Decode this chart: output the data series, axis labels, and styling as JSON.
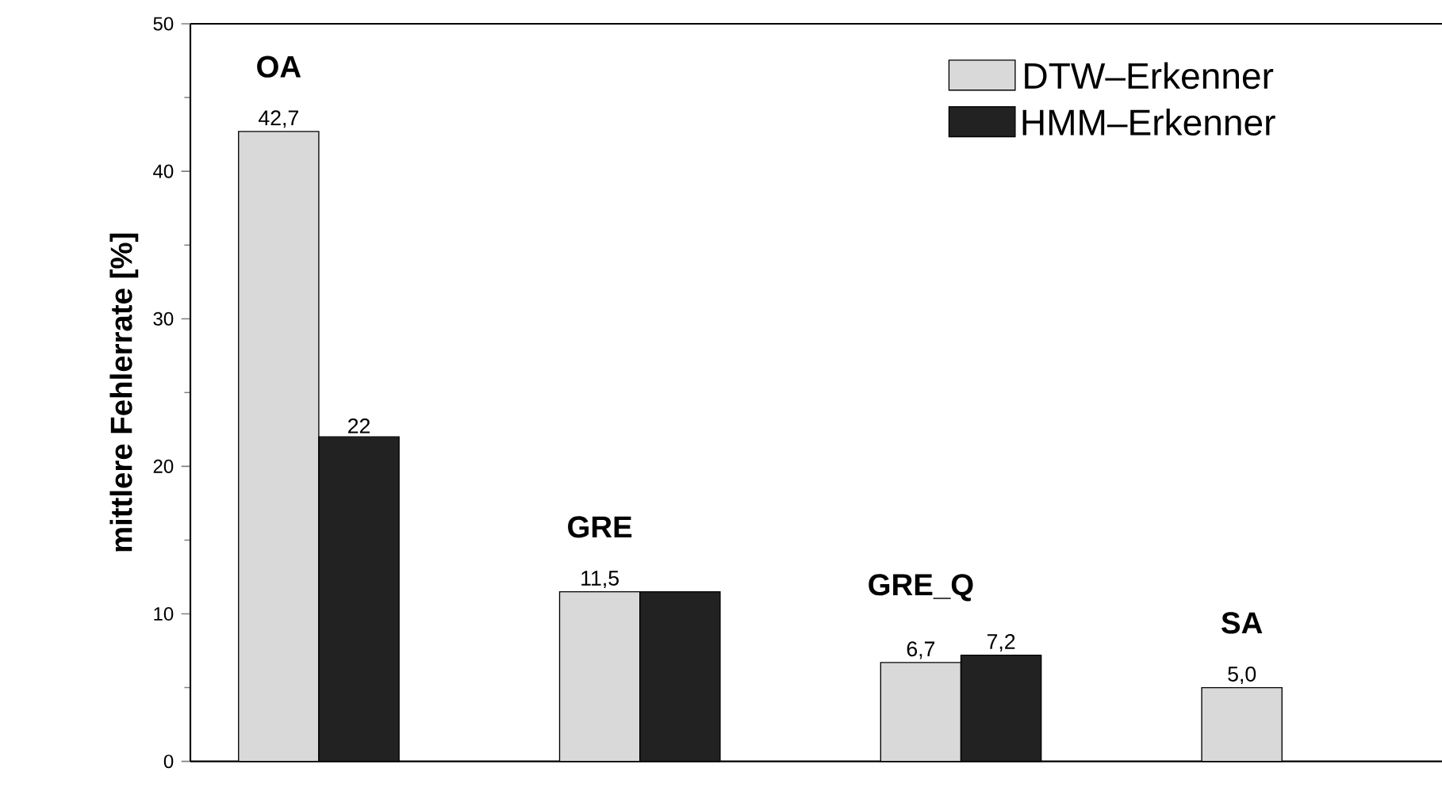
{
  "chart_data": {
    "type": "bar",
    "ylabel": "mittlere Fehlerrate [%]",
    "categories": [
      "OA",
      "GRE",
      "GRE_Q",
      "SA"
    ],
    "series": [
      {
        "name": "DTW–Erkenner",
        "color": "#d9d9d9",
        "values": [
          42.7,
          11.5,
          6.7,
          5.0
        ],
        "value_labels": [
          "42,7",
          "11,5",
          "6,7",
          "5,0"
        ]
      },
      {
        "name": "HMM–Erkenner",
        "color": "#222222",
        "values": [
          22,
          11.5,
          7.2,
          null
        ],
        "value_labels": [
          "22",
          null,
          "7,2",
          null
        ]
      }
    ],
    "ylim": [
      0,
      50
    ],
    "yticks": [
      0,
      10,
      20,
      30,
      40,
      50
    ],
    "tick_labels": "y",
    "legend": "top right",
    "grid": false
  }
}
